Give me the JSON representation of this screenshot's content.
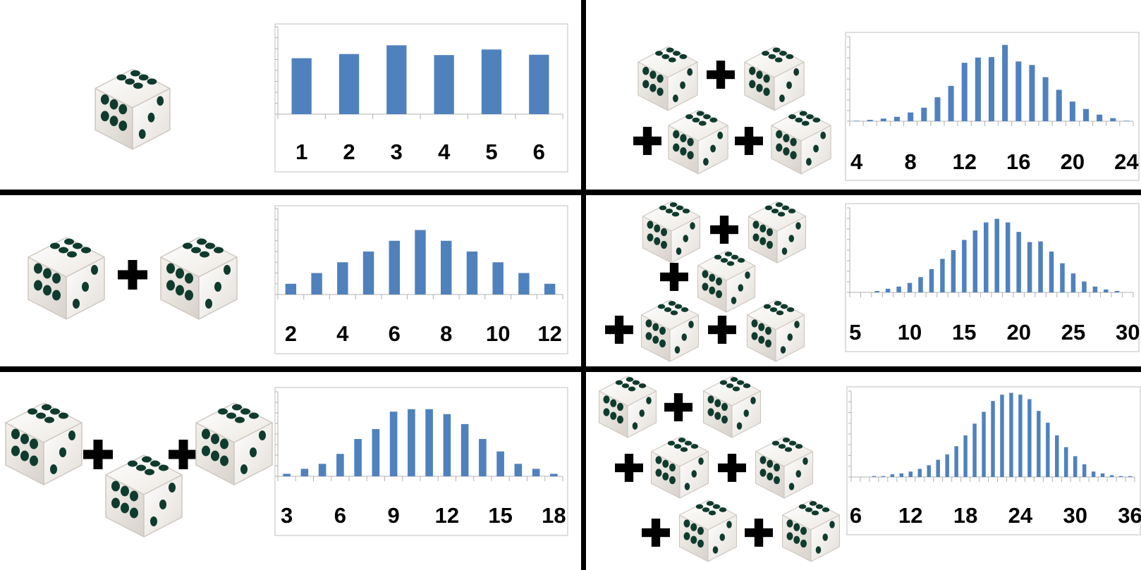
{
  "chart_data": [
    {
      "type": "bar",
      "panel": "one-die",
      "dice": 1,
      "categories": [
        1,
        2,
        3,
        4,
        5,
        6
      ],
      "values": [
        16.0,
        17.2,
        19.7,
        16.9,
        18.5,
        17.0
      ],
      "ylim": [
        0,
        25
      ],
      "tick_labels": [
        "1",
        "2",
        "3",
        "4",
        "5",
        "6"
      ],
      "grid": false
    },
    {
      "type": "bar",
      "panel": "two-dice",
      "dice": 2,
      "categories": [
        2,
        3,
        4,
        5,
        6,
        7,
        8,
        9,
        10,
        11,
        12
      ],
      "values": [
        1,
        2,
        3,
        4,
        5,
        6,
        5,
        4,
        3,
        2,
        1
      ],
      "ylim": [
        0,
        8
      ],
      "tick_labels": [
        "2",
        "4",
        "6",
        "8",
        "10",
        "12"
      ],
      "grid": false
    },
    {
      "type": "bar",
      "panel": "three-dice",
      "dice": 3,
      "categories": [
        3,
        4,
        5,
        6,
        7,
        8,
        9,
        10,
        11,
        12,
        13,
        14,
        15,
        16,
        17,
        18
      ],
      "values": [
        1,
        3,
        5,
        9,
        15,
        19,
        26,
        27,
        27,
        25,
        21,
        15,
        10,
        5,
        3,
        1
      ],
      "ylim": [
        0,
        34
      ],
      "tick_labels": [
        "3",
        "6",
        "9",
        "12",
        "15",
        "18"
      ],
      "grid": false
    },
    {
      "type": "bar",
      "panel": "four-dice",
      "dice": 4,
      "categories": [
        4,
        5,
        6,
        7,
        8,
        9,
        10,
        11,
        12,
        13,
        14,
        15,
        16,
        17,
        18,
        19,
        20,
        21,
        22,
        23,
        24
      ],
      "values": [
        1,
        3,
        6,
        10,
        20,
        31,
        55,
        81,
        134,
        146,
        147,
        175,
        137,
        129,
        101,
        72,
        45,
        28,
        15,
        7,
        1
      ],
      "ylim": [
        0,
        194
      ],
      "tick_labels": [
        "4",
        "8",
        "12",
        "16",
        "20",
        "24"
      ],
      "grid": false
    },
    {
      "type": "bar",
      "panel": "five-dice",
      "dice": 5,
      "categories": [
        5,
        6,
        7,
        8,
        9,
        10,
        11,
        12,
        13,
        14,
        15,
        16,
        17,
        18,
        19,
        20,
        21,
        22,
        23,
        24,
        25,
        26,
        27,
        28,
        29,
        30
      ],
      "values": [
        0,
        0,
        2,
        5,
        8,
        13,
        21,
        32,
        46,
        58,
        72,
        85,
        96,
        101,
        96,
        83,
        69,
        70,
        56,
        40,
        26,
        15,
        8,
        4,
        2,
        0
      ],
      "ylim": [
        0,
        116
      ],
      "tick_labels": [
        "5",
        "10",
        "15",
        "20",
        "25",
        "30"
      ],
      "grid": false
    },
    {
      "type": "bar",
      "panel": "six-dice",
      "dice": 6,
      "categories": [
        6,
        7,
        8,
        9,
        10,
        11,
        12,
        13,
        14,
        15,
        16,
        17,
        18,
        19,
        20,
        21,
        22,
        23,
        24,
        25,
        26,
        27,
        28,
        29,
        30,
        31,
        32,
        33,
        34,
        35,
        36
      ],
      "values": [
        0,
        0,
        1,
        1,
        3,
        4,
        6,
        9,
        13,
        19,
        25,
        34,
        46,
        59,
        72,
        84,
        91,
        93,
        91,
        86,
        73,
        60,
        46,
        33,
        23,
        14,
        6,
        4,
        2,
        1,
        1
      ],
      "ylim": [
        0,
        95
      ],
      "tick_labels": [
        "6",
        "12",
        "18",
        "24",
        "30",
        "36"
      ],
      "grid": false
    }
  ],
  "colors": {
    "bar": "#4f81bd",
    "axis": "#b2b2b2",
    "divider": "#000000",
    "die_face": "#f6f3ee",
    "pip": "#0f3b2e"
  },
  "icons": [
    "die-icon",
    "plus-icon"
  ]
}
